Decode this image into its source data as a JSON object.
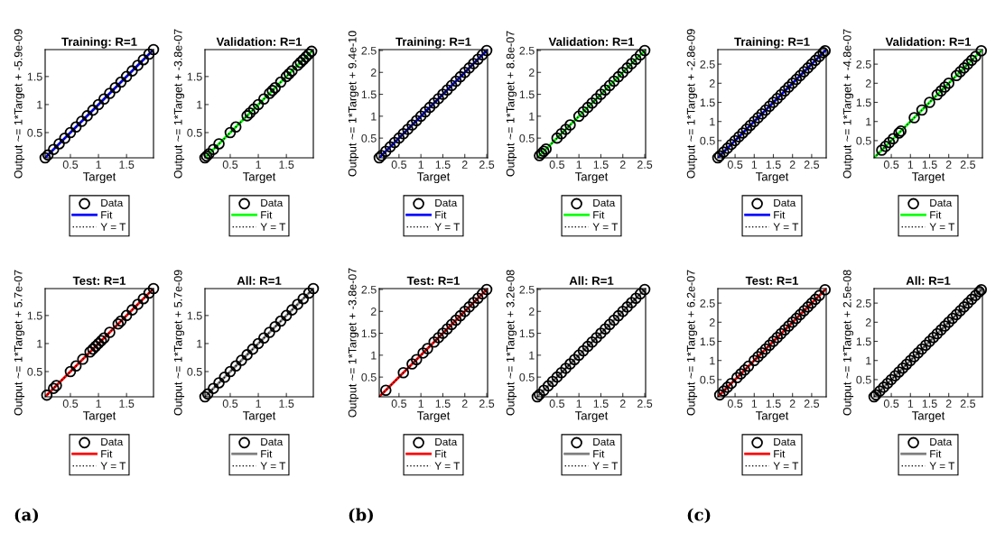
{
  "chart_data": [
    {
      "type": "scatter",
      "title": "Training: R=1",
      "xlabel": "Target",
      "ylabel": "Output ~= 1*Target + -5.9e-09",
      "xlim": [
        0.05,
        1.98
      ],
      "ylim": [
        0.05,
        1.98
      ],
      "xticks": [
        0.5,
        1,
        1.5
      ],
      "yticks": [
        0.5,
        1,
        1.5
      ],
      "legend": "bottom",
      "grid": false,
      "series": [
        {
          "name": "Data",
          "type": "scatter",
          "marker": "circle",
          "color": "#000000",
          "x": [
            0.05,
            0.1,
            0.2,
            0.3,
            0.4,
            0.5,
            0.6,
            0.7,
            0.8,
            0.9,
            1.0,
            1.1,
            1.2,
            1.3,
            1.4,
            1.5,
            1.6,
            1.7,
            1.8,
            1.9,
            1.98
          ],
          "values": [
            0.05,
            0.1,
            0.2,
            0.3,
            0.4,
            0.5,
            0.6,
            0.7,
            0.8,
            0.9,
            1.0,
            1.1,
            1.2,
            1.3,
            1.4,
            1.5,
            1.6,
            1.7,
            1.8,
            1.9,
            1.98
          ]
        },
        {
          "name": "Fit",
          "type": "line",
          "line_style": "solid",
          "color": "#0000ff",
          "x": [
            0.05,
            1.98
          ],
          "values": [
            0.05,
            1.98
          ]
        },
        {
          "name": "Y = T",
          "type": "line",
          "line_style": "dotted",
          "color": "#000000",
          "x": [
            0.05,
            1.98
          ],
          "values": [
            0.05,
            1.98
          ]
        }
      ]
    },
    {
      "type": "scatter",
      "title": "Validation: R=1",
      "xlabel": "Target",
      "ylabel": "Output ~= 1*Target + -3.8e-07",
      "xlim": [
        0.05,
        1.98
      ],
      "ylim": [
        0.05,
        1.98
      ],
      "xticks": [
        0.5,
        1,
        1.5
      ],
      "yticks": [
        0.5,
        1,
        1.5
      ],
      "legend": "bottom",
      "grid": false,
      "series": [
        {
          "name": "Data",
          "type": "scatter",
          "marker": "circle",
          "color": "#000000",
          "x": [
            0.05,
            0.08,
            0.12,
            0.2,
            0.3,
            0.5,
            0.6,
            0.8,
            0.85,
            0.92,
            1.0,
            1.1,
            1.2,
            1.25,
            1.3,
            1.4,
            1.5,
            1.55,
            1.6,
            1.7,
            1.75,
            1.8,
            1.85,
            1.9,
            1.95
          ],
          "values": [
            0.05,
            0.08,
            0.12,
            0.2,
            0.3,
            0.5,
            0.6,
            0.8,
            0.85,
            0.92,
            1.0,
            1.1,
            1.2,
            1.25,
            1.3,
            1.4,
            1.5,
            1.55,
            1.6,
            1.7,
            1.75,
            1.8,
            1.85,
            1.9,
            1.95
          ]
        },
        {
          "name": "Fit",
          "type": "line",
          "line_style": "solid",
          "color": "#00ff00",
          "x": [
            0.05,
            1.98
          ],
          "values": [
            0.05,
            1.98
          ]
        },
        {
          "name": "Y = T",
          "type": "line",
          "line_style": "dotted",
          "color": "#000000",
          "x": [
            0.05,
            1.98
          ],
          "values": [
            0.05,
            1.98
          ]
        }
      ]
    },
    {
      "type": "scatter",
      "title": "Test: R=1",
      "xlabel": "Target",
      "ylabel": "Output ~= 1*Target + 5.7e-07",
      "xlim": [
        0.05,
        1.98
      ],
      "ylim": [
        0.05,
        1.98
      ],
      "xticks": [
        0.5,
        1,
        1.5
      ],
      "yticks": [
        0.5,
        1,
        1.5
      ],
      "legend": "bottom",
      "grid": false,
      "annotations": [
        "(a)"
      ],
      "series": [
        {
          "name": "Data",
          "type": "scatter",
          "marker": "circle",
          "color": "#000000",
          "x": [
            0.08,
            0.2,
            0.25,
            0.5,
            0.6,
            0.72,
            0.85,
            0.9,
            0.95,
            1.0,
            1.05,
            1.1,
            1.2,
            1.35,
            1.4,
            1.5,
            1.6,
            1.7,
            1.8,
            1.9,
            1.98
          ],
          "values": [
            0.08,
            0.2,
            0.25,
            0.5,
            0.6,
            0.72,
            0.85,
            0.9,
            0.95,
            1.0,
            1.05,
            1.1,
            1.2,
            1.35,
            1.4,
            1.5,
            1.6,
            1.7,
            1.8,
            1.9,
            1.98
          ]
        },
        {
          "name": "Fit",
          "type": "line",
          "line_style": "solid",
          "color": "#ff0000",
          "x": [
            0.05,
            1.98
          ],
          "values": [
            0.05,
            1.98
          ]
        },
        {
          "name": "Y = T",
          "type": "line",
          "line_style": "dotted",
          "color": "#000000",
          "x": [
            0.05,
            1.98
          ],
          "values": [
            0.05,
            1.98
          ]
        }
      ]
    },
    {
      "type": "scatter",
      "title": "All: R=1",
      "xlabel": "Target",
      "ylabel": "Output ~= 1*Target + 5.7e-09",
      "xlim": [
        0.05,
        1.98
      ],
      "ylim": [
        0.05,
        1.98
      ],
      "xticks": [
        0.5,
        1,
        1.5
      ],
      "yticks": [
        0.5,
        1,
        1.5
      ],
      "legend": "bottom",
      "grid": false,
      "series": [
        {
          "name": "Data",
          "type": "scatter",
          "marker": "circle",
          "color": "#000000",
          "x": [
            0.05,
            0.1,
            0.2,
            0.3,
            0.4,
            0.5,
            0.6,
            0.7,
            0.8,
            0.9,
            1.0,
            1.1,
            1.2,
            1.3,
            1.4,
            1.5,
            1.6,
            1.7,
            1.8,
            1.9,
            1.98
          ],
          "values": [
            0.05,
            0.1,
            0.2,
            0.3,
            0.4,
            0.5,
            0.6,
            0.7,
            0.8,
            0.9,
            1.0,
            1.1,
            1.2,
            1.3,
            1.4,
            1.5,
            1.6,
            1.7,
            1.8,
            1.9,
            1.98
          ]
        },
        {
          "name": "Fit",
          "type": "line",
          "line_style": "solid",
          "color": "#7f7f7f",
          "x": [
            0.05,
            1.98
          ],
          "values": [
            0.05,
            1.98
          ]
        },
        {
          "name": "Y = T",
          "type": "line",
          "line_style": "dotted",
          "color": "#000000",
          "x": [
            0.05,
            1.98
          ],
          "values": [
            0.05,
            1.98
          ]
        }
      ]
    },
    {
      "type": "scatter",
      "title": "Training: R=1",
      "xlabel": "Target",
      "ylabel": "Output ~= 1*Target + 9.4e-10",
      "xlim": [
        0.05,
        2.52
      ],
      "ylim": [
        0.05,
        2.52
      ],
      "xticks": [
        0.5,
        1,
        1.5,
        2,
        2.5
      ],
      "yticks": [
        0.5,
        1,
        1.5,
        2,
        2.5
      ],
      "legend": "bottom",
      "grid": false,
      "series": [
        {
          "name": "Data",
          "type": "scatter",
          "marker": "circle",
          "color": "#000000",
          "x": [
            0.05,
            0.1,
            0.2,
            0.3,
            0.4,
            0.5,
            0.6,
            0.7,
            0.8,
            0.9,
            1.0,
            1.1,
            1.2,
            1.3,
            1.4,
            1.5,
            1.6,
            1.7,
            1.8,
            1.9,
            2.0,
            2.1,
            2.2,
            2.3,
            2.4,
            2.5
          ],
          "values": [
            0.05,
            0.1,
            0.2,
            0.3,
            0.4,
            0.5,
            0.6,
            0.7,
            0.8,
            0.9,
            1.0,
            1.1,
            1.2,
            1.3,
            1.4,
            1.5,
            1.6,
            1.7,
            1.8,
            1.9,
            2.0,
            2.1,
            2.2,
            2.3,
            2.4,
            2.5
          ]
        },
        {
          "name": "Fit",
          "type": "line",
          "line_style": "solid",
          "color": "#0000ff",
          "x": [
            0.05,
            2.5
          ],
          "values": [
            0.05,
            2.5
          ]
        },
        {
          "name": "Y = T",
          "type": "line",
          "line_style": "dotted",
          "color": "#000000",
          "x": [
            0.05,
            2.5
          ],
          "values": [
            0.05,
            2.5
          ]
        }
      ]
    },
    {
      "type": "scatter",
      "title": "Validation: R=1",
      "xlabel": "Target",
      "ylabel": "Output ~= 1*Target + 8.8e-07",
      "xlim": [
        0.05,
        2.52
      ],
      "ylim": [
        0.05,
        2.52
      ],
      "xticks": [
        0.5,
        1,
        1.5,
        2,
        2.5
      ],
      "yticks": [
        0.5,
        1,
        1.5,
        2,
        2.5
      ],
      "legend": "bottom",
      "grid": false,
      "series": [
        {
          "name": "Data",
          "type": "scatter",
          "marker": "circle",
          "color": "#000000",
          "x": [
            0.1,
            0.15,
            0.2,
            0.25,
            0.5,
            0.6,
            0.7,
            0.8,
            1.0,
            1.1,
            1.2,
            1.3,
            1.4,
            1.5,
            1.6,
            1.7,
            1.8,
            1.9,
            2.0,
            2.1,
            2.2,
            2.3,
            2.4,
            2.5
          ],
          "values": [
            0.1,
            0.15,
            0.2,
            0.25,
            0.5,
            0.6,
            0.7,
            0.8,
            1.0,
            1.1,
            1.2,
            1.3,
            1.4,
            1.5,
            1.6,
            1.7,
            1.8,
            1.9,
            2.0,
            2.1,
            2.2,
            2.3,
            2.4,
            2.5
          ]
        },
        {
          "name": "Fit",
          "type": "line",
          "line_style": "solid",
          "color": "#00ff00",
          "x": [
            0.05,
            2.5
          ],
          "values": [
            0.05,
            2.5
          ]
        },
        {
          "name": "Y = T",
          "type": "line",
          "line_style": "dotted",
          "color": "#000000",
          "x": [
            0.05,
            2.5
          ],
          "values": [
            0.05,
            2.5
          ]
        }
      ]
    },
    {
      "type": "scatter",
      "title": "Test: R=1",
      "xlabel": "Target",
      "ylabel": "Output ~= 1*Target + -3.8e-07",
      "xlim": [
        0.05,
        2.52
      ],
      "ylim": [
        0.05,
        2.52
      ],
      "xticks": [
        0.5,
        1,
        1.5,
        2,
        2.5
      ],
      "yticks": [
        0.5,
        1,
        1.5,
        2,
        2.5
      ],
      "legend": "bottom",
      "grid": false,
      "annotations": [
        "(b)"
      ],
      "series": [
        {
          "name": "Data",
          "type": "scatter",
          "marker": "circle",
          "color": "#000000",
          "x": [
            0.2,
            0.6,
            0.8,
            0.9,
            1.05,
            1.15,
            1.3,
            1.4,
            1.5,
            1.6,
            1.7,
            1.8,
            1.9,
            2.0,
            2.1,
            2.2,
            2.3,
            2.4,
            2.5
          ],
          "values": [
            0.2,
            0.6,
            0.8,
            0.9,
            1.05,
            1.15,
            1.3,
            1.4,
            1.5,
            1.6,
            1.7,
            1.8,
            1.9,
            2.0,
            2.1,
            2.2,
            2.3,
            2.4,
            2.5
          ]
        },
        {
          "name": "Fit",
          "type": "line",
          "line_style": "solid",
          "color": "#ff0000",
          "x": [
            0.05,
            2.5
          ],
          "values": [
            0.05,
            2.5
          ]
        },
        {
          "name": "Y = T",
          "type": "line",
          "line_style": "dotted",
          "color": "#000000",
          "x": [
            0.05,
            2.5
          ],
          "values": [
            0.05,
            2.5
          ]
        }
      ]
    },
    {
      "type": "scatter",
      "title": "All: R=1",
      "xlabel": "Target",
      "ylabel": "Output ~= 1*Target + 3.2e-08",
      "xlim": [
        0.05,
        2.52
      ],
      "ylim": [
        0.05,
        2.52
      ],
      "xticks": [
        0.5,
        1,
        1.5,
        2,
        2.5
      ],
      "yticks": [
        0.5,
        1,
        1.5,
        2,
        2.5
      ],
      "legend": "bottom",
      "grid": false,
      "series": [
        {
          "name": "Data",
          "type": "scatter",
          "marker": "circle",
          "color": "#000000",
          "x": [
            0.05,
            0.1,
            0.2,
            0.3,
            0.4,
            0.5,
            0.6,
            0.7,
            0.8,
            0.9,
            1.0,
            1.1,
            1.2,
            1.3,
            1.4,
            1.5,
            1.6,
            1.7,
            1.8,
            1.9,
            2.0,
            2.1,
            2.2,
            2.3,
            2.4,
            2.5
          ],
          "values": [
            0.05,
            0.1,
            0.2,
            0.3,
            0.4,
            0.5,
            0.6,
            0.7,
            0.8,
            0.9,
            1.0,
            1.1,
            1.2,
            1.3,
            1.4,
            1.5,
            1.6,
            1.7,
            1.8,
            1.9,
            2.0,
            2.1,
            2.2,
            2.3,
            2.4,
            2.5
          ]
        },
        {
          "name": "Fit",
          "type": "line",
          "line_style": "solid",
          "color": "#7f7f7f",
          "x": [
            0.05,
            2.5
          ],
          "values": [
            0.05,
            2.5
          ]
        },
        {
          "name": "Y = T",
          "type": "line",
          "line_style": "dotted",
          "color": "#000000",
          "x": [
            0.05,
            2.5
          ],
          "values": [
            0.05,
            2.5
          ]
        }
      ]
    },
    {
      "type": "scatter",
      "title": "Training: R=1",
      "xlabel": "Target",
      "ylabel": "Output ~= 1*Target + -2.8e-09",
      "xlim": [
        0.05,
        2.88
      ],
      "ylim": [
        0.05,
        2.88
      ],
      "xticks": [
        0.5,
        1,
        1.5,
        2,
        2.5
      ],
      "yticks": [
        0.5,
        1,
        1.5,
        2,
        2.5
      ],
      "legend": "bottom",
      "grid": false,
      "series": [
        {
          "name": "Data",
          "type": "scatter",
          "marker": "circle",
          "color": "#000000",
          "x": [
            0.05,
            0.1,
            0.2,
            0.3,
            0.4,
            0.5,
            0.6,
            0.7,
            0.8,
            0.9,
            1.0,
            1.1,
            1.2,
            1.3,
            1.4,
            1.5,
            1.6,
            1.7,
            1.8,
            1.9,
            2.0,
            2.1,
            2.2,
            2.3,
            2.4,
            2.5,
            2.6,
            2.7,
            2.8,
            2.85
          ],
          "values": [
            0.05,
            0.1,
            0.2,
            0.3,
            0.4,
            0.5,
            0.6,
            0.7,
            0.8,
            0.9,
            1.0,
            1.1,
            1.2,
            1.3,
            1.4,
            1.5,
            1.6,
            1.7,
            1.8,
            1.9,
            2.0,
            2.1,
            2.2,
            2.3,
            2.4,
            2.5,
            2.6,
            2.7,
            2.8,
            2.85
          ]
        },
        {
          "name": "Fit",
          "type": "line",
          "line_style": "solid",
          "color": "#0000ff",
          "x": [
            0.05,
            2.85
          ],
          "values": [
            0.05,
            2.85
          ]
        },
        {
          "name": "Y = T",
          "type": "line",
          "line_style": "dotted",
          "color": "#000000",
          "x": [
            0.05,
            2.85
          ],
          "values": [
            0.05,
            2.85
          ]
        }
      ]
    },
    {
      "type": "scatter",
      "title": "Validation: R=1",
      "xlabel": "Target",
      "ylabel": "Output ~= 1*Target + -4.8e-07",
      "xlim": [
        0.05,
        2.88
      ],
      "ylim": [
        0.05,
        2.88
      ],
      "xticks": [
        0.5,
        1,
        1.5,
        2,
        2.5
      ],
      "yticks": [
        0.5,
        1,
        1.5,
        2,
        2.5
      ],
      "legend": "bottom",
      "grid": false,
      "series": [
        {
          "name": "Data",
          "type": "scatter",
          "marker": "circle",
          "color": "#000000",
          "x": [
            0.25,
            0.35,
            0.45,
            0.55,
            0.7,
            0.75,
            1.1,
            1.3,
            1.5,
            1.7,
            1.8,
            1.9,
            2.0,
            2.2,
            2.3,
            2.4,
            2.5,
            2.6,
            2.7,
            2.85
          ],
          "values": [
            0.25,
            0.35,
            0.45,
            0.55,
            0.7,
            0.75,
            1.1,
            1.3,
            1.5,
            1.7,
            1.8,
            1.9,
            2.0,
            2.2,
            2.3,
            2.4,
            2.5,
            2.6,
            2.7,
            2.85
          ]
        },
        {
          "name": "Fit",
          "type": "line",
          "line_style": "solid",
          "color": "#00ff00",
          "x": [
            0.05,
            2.85
          ],
          "values": [
            0.05,
            2.85
          ]
        },
        {
          "name": "Y = T",
          "type": "line",
          "line_style": "dotted",
          "color": "#000000",
          "x": [
            0.05,
            2.85
          ],
          "values": [
            0.05,
            2.85
          ]
        }
      ]
    },
    {
      "type": "scatter",
      "title": "Test: R=1",
      "xlabel": "Target",
      "ylabel": "Output ~= 1*Target + 6.2e-07",
      "xlim": [
        0.05,
        2.88
      ],
      "ylim": [
        0.05,
        2.88
      ],
      "xticks": [
        0.5,
        1,
        1.5,
        2,
        2.5
      ],
      "yticks": [
        0.5,
        1,
        1.5,
        2,
        2.5
      ],
      "legend": "bottom",
      "grid": false,
      "annotations": [
        "(c)"
      ],
      "series": [
        {
          "name": "Data",
          "type": "scatter",
          "marker": "circle",
          "color": "#000000",
          "x": [
            0.1,
            0.2,
            0.3,
            0.4,
            0.55,
            0.65,
            0.75,
            0.85,
            1.0,
            1.1,
            1.2,
            1.3,
            1.4,
            1.5,
            1.6,
            1.7,
            1.8,
            1.9,
            2.0,
            2.1,
            2.2,
            2.3,
            2.4,
            2.5,
            2.6,
            2.7,
            2.85
          ],
          "values": [
            0.1,
            0.2,
            0.3,
            0.4,
            0.55,
            0.65,
            0.75,
            0.85,
            1.0,
            1.1,
            1.2,
            1.3,
            1.4,
            1.5,
            1.6,
            1.7,
            1.8,
            1.9,
            2.0,
            2.1,
            2.2,
            2.3,
            2.4,
            2.5,
            2.6,
            2.7,
            2.85
          ]
        },
        {
          "name": "Fit",
          "type": "line",
          "line_style": "solid",
          "color": "#ff0000",
          "x": [
            0.05,
            2.85
          ],
          "values": [
            0.05,
            2.85
          ]
        },
        {
          "name": "Y = T",
          "type": "line",
          "line_style": "dotted",
          "color": "#000000",
          "x": [
            0.05,
            2.85
          ],
          "values": [
            0.05,
            2.85
          ]
        }
      ]
    },
    {
      "type": "scatter",
      "title": "All: R=1",
      "xlabel": "Target",
      "ylabel": "Output ~= 1*Target + 2.5e-08",
      "xlim": [
        0.05,
        2.88
      ],
      "ylim": [
        0.05,
        2.88
      ],
      "xticks": [
        0.5,
        1,
        1.5,
        2,
        2.5
      ],
      "yticks": [
        0.5,
        1,
        1.5,
        2,
        2.5
      ],
      "legend": "bottom",
      "grid": false,
      "series": [
        {
          "name": "Data",
          "type": "scatter",
          "marker": "circle",
          "color": "#000000",
          "x": [
            0.05,
            0.1,
            0.2,
            0.3,
            0.4,
            0.5,
            0.6,
            0.7,
            0.8,
            0.9,
            1.0,
            1.1,
            1.2,
            1.3,
            1.4,
            1.5,
            1.6,
            1.7,
            1.8,
            1.9,
            2.0,
            2.1,
            2.2,
            2.3,
            2.4,
            2.5,
            2.6,
            2.7,
            2.8,
            2.85
          ],
          "values": [
            0.05,
            0.1,
            0.2,
            0.3,
            0.4,
            0.5,
            0.6,
            0.7,
            0.8,
            0.9,
            1.0,
            1.1,
            1.2,
            1.3,
            1.4,
            1.5,
            1.6,
            1.7,
            1.8,
            1.9,
            2.0,
            2.1,
            2.2,
            2.3,
            2.4,
            2.5,
            2.6,
            2.7,
            2.8,
            2.85
          ]
        },
        {
          "name": "Fit",
          "type": "line",
          "line_style": "solid",
          "color": "#7f7f7f",
          "x": [
            0.05,
            2.85
          ],
          "values": [
            0.05,
            2.85
          ]
        },
        {
          "name": "Y = T",
          "type": "line",
          "line_style": "dotted",
          "color": "#000000",
          "x": [
            0.05,
            2.85
          ],
          "values": [
            0.05,
            2.85
          ]
        }
      ]
    }
  ]
}
